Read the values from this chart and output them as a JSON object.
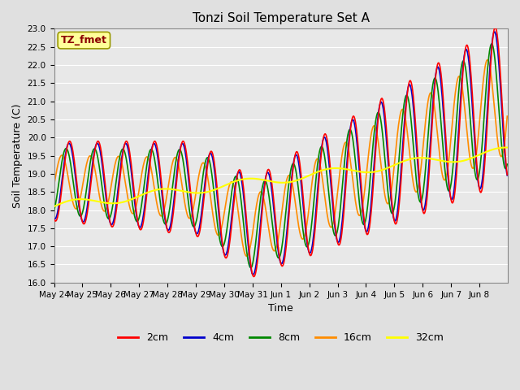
{
  "title": "Tonzi Soil Temperature Set A",
  "xlabel": "Time",
  "ylabel": "Soil Temperature (C)",
  "annotation": "TZ_fmet",
  "annotation_color": "#8B0000",
  "annotation_bg": "#FFFF99",
  "annotation_edge": "#999900",
  "ylim": [
    16.0,
    23.0
  ],
  "yticks": [
    16.0,
    16.5,
    17.0,
    17.5,
    18.0,
    18.5,
    19.0,
    19.5,
    20.0,
    20.5,
    21.0,
    21.5,
    22.0,
    22.5,
    23.0
  ],
  "xtick_labels": [
    "May 24",
    "May 25",
    "May 26",
    "May 27",
    "May 28",
    "May 29",
    "May 30",
    "May 31",
    "Jun 1",
    "Jun 2",
    "Jun 3",
    "Jun 4",
    "Jun 5",
    "Jun 6",
    "Jun 7",
    "Jun 8"
  ],
  "series": {
    "2cm": {
      "color": "#FF0000",
      "linewidth": 1.2
    },
    "4cm": {
      "color": "#0000CC",
      "linewidth": 1.2
    },
    "8cm": {
      "color": "#008800",
      "linewidth": 1.2
    },
    "16cm": {
      "color": "#FF8C00",
      "linewidth": 1.2
    },
    "32cm": {
      "color": "#FFFF00",
      "linewidth": 1.5
    }
  },
  "fig_bg": "#E0E0E0",
  "plot_bg": "#E8E8E8",
  "grid_color": "#FFFFFF",
  "figsize": [
    6.4,
    4.8
  ],
  "dpi": 100
}
